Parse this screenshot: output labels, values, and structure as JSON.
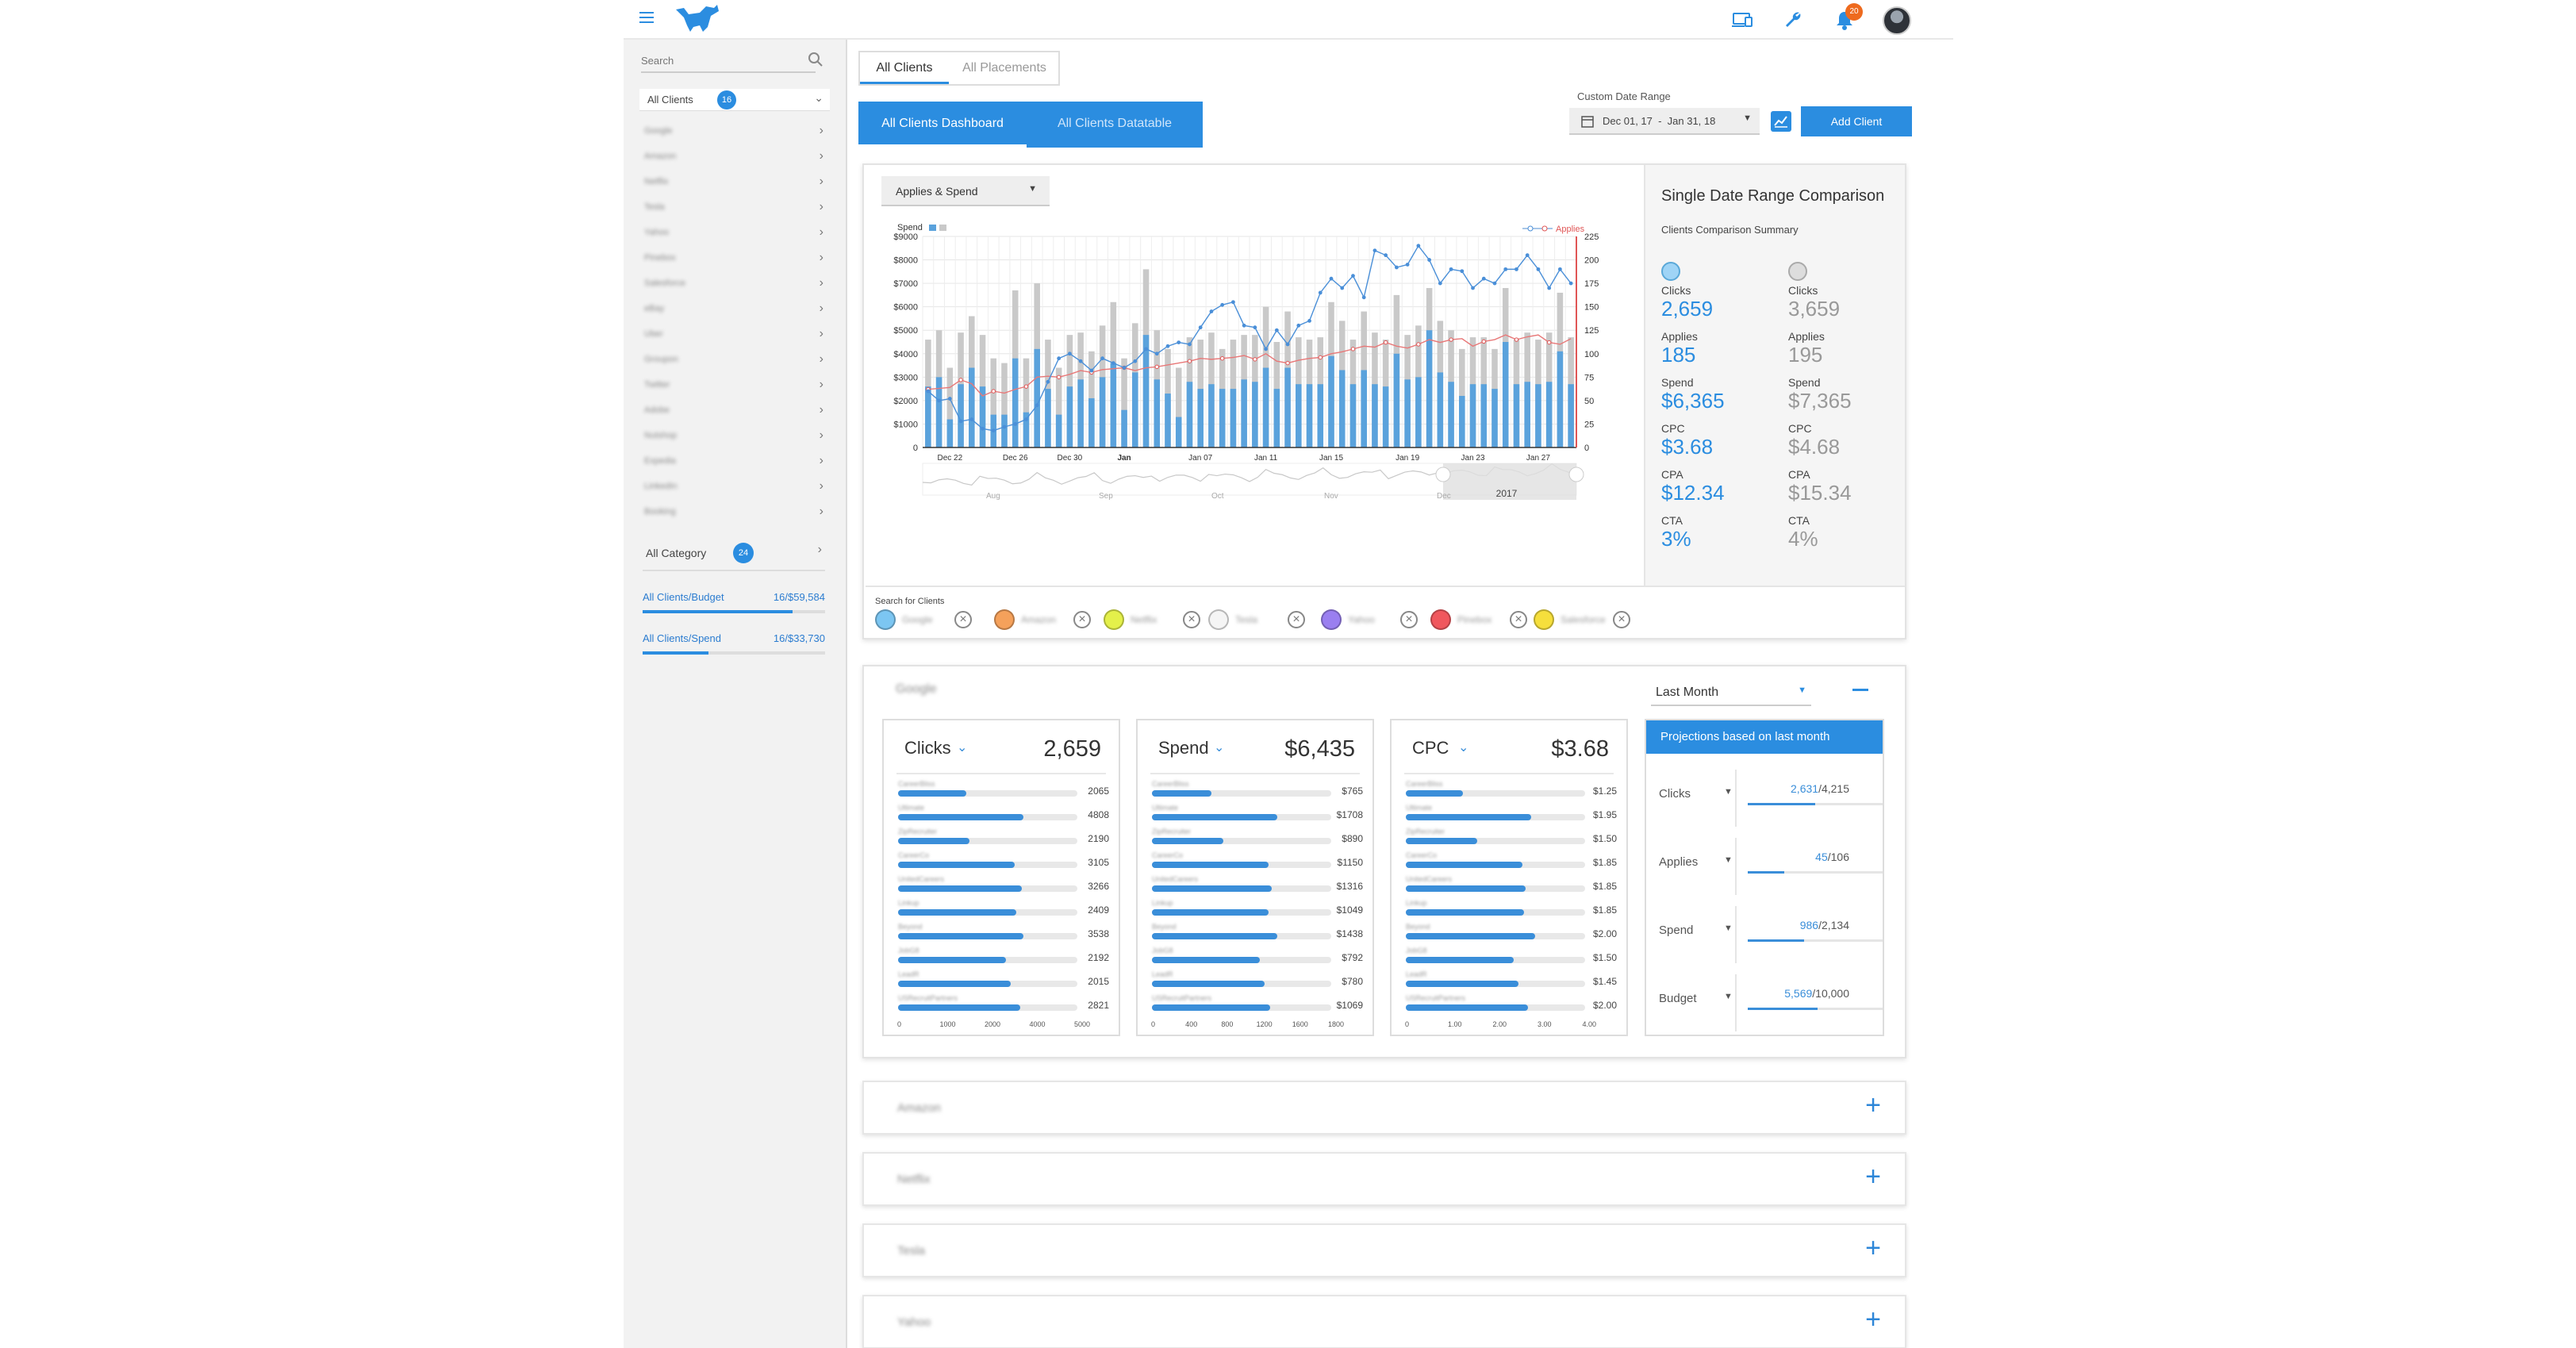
{
  "topbar": {
    "notification_count": "20"
  },
  "sidebar": {
    "search_placeholder": "Search",
    "all_clients_label": "All Clients",
    "all_clients_count": "16",
    "clients": [
      "Google",
      "Amazon",
      "Netflix",
      "Tesla",
      "Yahoo",
      "Pinebox",
      "Salesforce",
      "eBay",
      "Uber",
      "Groupon",
      "Twitter",
      "Adobe",
      "Nutshop",
      "Expedia",
      "LinkedIn",
      "Booking"
    ],
    "all_category_label": "All Category",
    "all_category_count": "24",
    "budget_label": "All Clients/Budget",
    "budget_value": "16/$59,584",
    "budget_progress": 0.82,
    "spend_label": "All Clients/Spend",
    "spend_value": "16/$33,730",
    "spend_progress": 0.36
  },
  "tabs": {
    "all_clients": "All Clients",
    "all_placements": "All Placements"
  },
  "subtabs": {
    "dashboard": "All Clients Dashboard",
    "datatable": "All Clients Datatable"
  },
  "date": {
    "label": "Custom Date Range",
    "value": "Dec 01, 17  -  Jan 31, 18"
  },
  "add_client": "Add Client",
  "chart": {
    "dropdown": "Applies & Spend",
    "spend_legend": "Spend",
    "applies_legend": "Applies"
  },
  "chart_data": {
    "type": "bar",
    "left_axis": {
      "ticks": [
        "$9000",
        "$8000",
        "$7000",
        "$6000",
        "$5000",
        "$4000",
        "$3000",
        "$2000",
        "$1000",
        "0"
      ],
      "ylim": [
        0,
        9000
      ]
    },
    "right_axis": {
      "ticks": [
        "225",
        "200",
        "175",
        "150",
        "125",
        "100",
        "75",
        "50",
        "25",
        "0"
      ],
      "ylim": [
        0,
        225
      ]
    },
    "x_ticks": [
      {
        "label": "Dec 22",
        "i": 2
      },
      {
        "label": "Dec 26",
        "i": 8
      },
      {
        "label": "Dec 30",
        "i": 13
      },
      {
        "label": "Jan",
        "i": 18,
        "bold": true
      },
      {
        "label": "Jan 07",
        "i": 25
      },
      {
        "label": "Jan 11",
        "i": 31
      },
      {
        "label": "Jan 15",
        "i": 37
      },
      {
        "label": "Jan 19",
        "i": 44
      },
      {
        "label": "Jan 23",
        "i": 50
      },
      {
        "label": "Jan 27",
        "i": 56
      }
    ],
    "series": [
      {
        "name": "Spend (gray)",
        "values": [
          4600,
          5000,
          3400,
          4900,
          5600,
          4800,
          3800,
          3600,
          6700,
          3800,
          7000,
          4600,
          3400,
          4800,
          4900,
          4100,
          5200,
          6200,
          3800,
          5300,
          7600,
          5000,
          4200,
          3400,
          4700,
          4600,
          4900,
          4200,
          4600,
          4800,
          4800,
          6000,
          4500,
          5800,
          4700,
          4600,
          4700,
          6200,
          5400,
          4600,
          5800,
          4900,
          4600,
          6500,
          4800,
          5200,
          6800,
          5400,
          5000,
          4200,
          4700,
          4700,
          4200,
          6800,
          4600,
          4900,
          4600,
          4900,
          6600,
          4700
        ],
        "blue": [
          2600,
          3000,
          1200,
          2700,
          3400,
          2600,
          1400,
          1400,
          3800,
          1500,
          4200,
          2500,
          1400,
          2600,
          2900,
          2100,
          3000,
          3600,
          1600,
          3200,
          4800,
          2900,
          2300,
          1300,
          2800,
          2500,
          2700,
          2500,
          2500,
          2900,
          2800,
          3400,
          2500,
          3400,
          2700,
          2700,
          2700,
          3900,
          3300,
          2700,
          3300,
          2700,
          2600,
          4000,
          2900,
          3000,
          5000,
          3200,
          2800,
          2200,
          2700,
          2700,
          2500,
          4500,
          2700,
          2800,
          2700,
          2800,
          4100,
          2700
        ]
      },
      {
        "name": "Applies",
        "values": [
          62,
          63,
          64,
          72,
          68,
          55,
          60,
          58,
          62,
          65,
          75,
          76,
          75,
          78,
          82,
          80,
          83,
          84,
          85,
          82,
          85,
          86,
          88,
          90,
          92,
          95,
          94,
          95,
          96,
          98,
          94,
          100,
          92,
          90,
          93,
          95,
          96,
          100,
          102,
          105,
          108,
          107,
          112,
          108,
          106,
          110,
          115,
          112,
          115,
          116,
          108,
          113,
          115,
          120,
          115,
          118,
          120,
          112,
          110,
          116
        ]
      },
      {
        "name": "Clicks",
        "values": [
          60,
          50,
          52,
          28,
          30,
          20,
          18,
          22,
          25,
          30,
          45,
          70,
          95,
          100,
          92,
          82,
          95,
          90,
          85,
          92,
          105,
          100,
          108,
          112,
          110,
          128,
          145,
          152,
          155,
          130,
          128,
          105,
          125,
          110,
          130,
          135,
          165,
          180,
          170,
          183,
          160,
          210,
          205,
          192,
          195,
          215,
          200,
          175,
          190,
          188,
          170,
          180,
          175,
          190,
          190,
          205,
          190,
          170,
          190,
          175
        ]
      }
    ],
    "mini_timeline": {
      "labels": [
        "Aug",
        "Sep",
        "Oct",
        "Nov",
        "Dec"
      ],
      "year": "2017"
    }
  },
  "comparison": {
    "title": "Single Date Range Comparison",
    "subtitle": "Clients Comparison Summary",
    "a": {
      "clicks": "2,659",
      "applies": "185",
      "spend": "$6,365",
      "cpc": "$3.68",
      "cpa": "$12.34",
      "cta": "3%"
    },
    "b": {
      "clicks": "3,659",
      "applies": "195",
      "spend": "$7,365",
      "cpc": "$4.68",
      "cpa": "$15.34",
      "cta": "4%"
    },
    "labels": {
      "clicks": "Clicks",
      "applies": "Applies",
      "spend": "Spend",
      "cpc": "CPC",
      "cpa": "CPA",
      "cta": "CTA"
    }
  },
  "search_clients": {
    "label": "Search for Clients",
    "chips": [
      {
        "name": "Google",
        "color": "#7cc6f2"
      },
      {
        "name": "Amazon",
        "color": "#f5a15b"
      },
      {
        "name": "Netflix",
        "color": "#e4f04a"
      },
      {
        "name": "Tesla",
        "color": "#f5f5f5"
      },
      {
        "name": "Yahoo",
        "color": "#9a7ff0"
      },
      {
        "name": "Pinebox",
        "color": "#f0575d"
      },
      {
        "name": "Salesforce",
        "color": "#f6df3c"
      }
    ]
  },
  "panel": {
    "client": "Google",
    "range": "Last Month",
    "cards": [
      {
        "title": "Clicks",
        "total": "2,659",
        "axis": [
          "0",
          "1000",
          "2000",
          "4000",
          "5000"
        ],
        "rows": [
          {
            "label": "CareerBliss",
            "value": "2065",
            "pct": 0.38
          },
          {
            "label": "Ultimate",
            "value": "4808",
            "pct": 0.7
          },
          {
            "label": "ZipRecruiter",
            "value": "2190",
            "pct": 0.4
          },
          {
            "label": "CareerCo",
            "value": "3105",
            "pct": 0.65
          },
          {
            "label": "UnitedCareers",
            "value": "3266",
            "pct": 0.69
          },
          {
            "label": "Linkup",
            "value": "2409",
            "pct": 0.66
          },
          {
            "label": "Beyond",
            "value": "3538",
            "pct": 0.7
          },
          {
            "label": "JobG8",
            "value": "2192",
            "pct": 0.6
          },
          {
            "label": "LeadR",
            "value": "2015",
            "pct": 0.63
          },
          {
            "label": "USRecruitPartners",
            "value": "2821",
            "pct": 0.68
          }
        ]
      },
      {
        "title": "Spend",
        "total": "$6,435",
        "axis": [
          "0",
          "400",
          "800",
          "1200",
          "1600",
          "1800"
        ],
        "rows": [
          {
            "label": "CareerBliss",
            "value": "$765",
            "pct": 0.33
          },
          {
            "label": "Ultimate",
            "value": "$1708",
            "pct": 0.7
          },
          {
            "label": "ZipRecruiter",
            "value": "$890",
            "pct": 0.4
          },
          {
            "label": "CareerCo",
            "value": "$1150",
            "pct": 0.65
          },
          {
            "label": "UnitedCareers",
            "value": "$1316",
            "pct": 0.67
          },
          {
            "label": "Linkup",
            "value": "$1049",
            "pct": 0.65
          },
          {
            "label": "Beyond",
            "value": "$1438",
            "pct": 0.7
          },
          {
            "label": "JobG8",
            "value": "$792",
            "pct": 0.6
          },
          {
            "label": "LeadR",
            "value": "$780",
            "pct": 0.63
          },
          {
            "label": "USRecruitPartners",
            "value": "$1069",
            "pct": 0.66
          }
        ]
      },
      {
        "title": "CPC",
        "total": "$3.68",
        "axis": [
          "0",
          "1.00",
          "2.00",
          "3.00",
          "4.00"
        ],
        "rows": [
          {
            "label": "CareerBliss",
            "value": "$1.25",
            "pct": 0.32
          },
          {
            "label": "Ultimate",
            "value": "$1.95",
            "pct": 0.7
          },
          {
            "label": "ZipRecruiter",
            "value": "$1.50",
            "pct": 0.4
          },
          {
            "label": "CareerCo",
            "value": "$1.85",
            "pct": 0.65
          },
          {
            "label": "UnitedCareers",
            "value": "$1.85",
            "pct": 0.67
          },
          {
            "label": "Linkup",
            "value": "$1.85",
            "pct": 0.66
          },
          {
            "label": "Beyond",
            "value": "$2.00",
            "pct": 0.72
          },
          {
            "label": "JobG8",
            "value": "$1.50",
            "pct": 0.6
          },
          {
            "label": "LeadR",
            "value": "$1.45",
            "pct": 0.63
          },
          {
            "label": "USRecruitPartners",
            "value": "$2.00",
            "pct": 0.68
          }
        ]
      }
    ],
    "projections": {
      "title": "Projections based on last month",
      "rows": [
        {
          "label": "Clicks",
          "current": "2,631",
          "total": "/4,215",
          "pct": 0.5
        },
        {
          "label": "Applies",
          "current": "45",
          "total": "/106",
          "pct": 0.27
        },
        {
          "label": "Spend",
          "current": "986",
          "total": "/2,134",
          "pct": 0.42
        },
        {
          "label": "Budget",
          "current": "5,569",
          "total": "/10,000",
          "pct": 0.52
        }
      ]
    }
  },
  "collapsed": [
    "Amazon",
    "Netflix",
    "Tesla",
    "Yahoo"
  ],
  "colors": {
    "accent": "#2b8de0",
    "bar_blue": "#5aa2dc",
    "bar_gray": "#c9c9c9",
    "applies_line": "#e05656",
    "clicks_line": "#4a8fd8"
  }
}
